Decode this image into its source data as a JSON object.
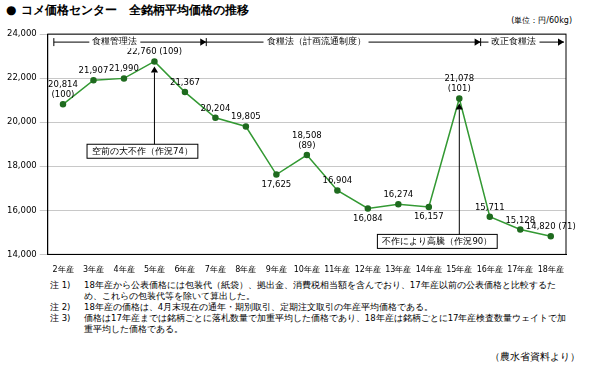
{
  "chart_data": {
    "type": "line",
    "title": "● コメ価格センター　全銘柄平均価格の推移",
    "y_label": "(単位：円/60kg)",
    "categories": [
      "2年産",
      "3年産",
      "4年産",
      "5年産",
      "6年産",
      "7年産",
      "8年産",
      "9年産",
      "10年産",
      "11年産",
      "12年産",
      "13年産",
      "14年産",
      "15年産",
      "16年産",
      "17年産",
      "18年産"
    ],
    "values": [
      20814,
      21907,
      21990,
      22760,
      21367,
      20204,
      19805,
      17625,
      18508,
      16904,
      16084,
      16274,
      16157,
      21078,
      15711,
      15128,
      14820
    ],
    "value_labels": [
      "20,814\n(100)",
      "21,907",
      "21,990",
      "22,760 (109)",
      "21,367",
      "20,204",
      "19,805",
      "17,625",
      "18,508\n(89)",
      "16,904",
      "16,084",
      "16,274",
      "16,157",
      "21,078\n(101)",
      "15,711",
      "15,128",
      "14,820 (71)"
    ],
    "data_labels": true,
    "color": "#339933",
    "marker": "circle",
    "line_style": "solid",
    "ylim": [
      14000,
      24000
    ],
    "yticks": [
      {
        "value": 14000,
        "label": "14,000"
      },
      {
        "value": 16000,
        "label": "16,000"
      },
      {
        "value": 18000,
        "label": "18,000"
      },
      {
        "value": 20000,
        "label": "20,000"
      },
      {
        "value": 22000,
        "label": "22,000"
      },
      {
        "value": 24000,
        "label": "24,000"
      }
    ],
    "grid": true,
    "periods": [
      {
        "label": "食糧管理法",
        "from": "2年産",
        "to": "6年産"
      },
      {
        "label": "食糧法（計画流通制度）",
        "from": "7年産",
        "to": "15年産"
      },
      {
        "label": "改正食糧法",
        "from": "16年産",
        "to": "18年産"
      }
    ],
    "annotations": [
      {
        "text": "空前の大不作（作況74）",
        "category": "5年産"
      },
      {
        "text": "不作により高騰（作況90）",
        "category": "15年産"
      }
    ],
    "notes": [
      {
        "label": "注 1)",
        "text": "18年産から公表価格には包装代（紙袋）、拠出金、消費税相当額を含んでおり、17年産以前の公表価格と比較するため、これらの包装代等を除いて算出した。"
      },
      {
        "label": "注 2)",
        "text": "18年産の価格は、4月末現在の通年・期別取引、定期注文取引の年産平均価格である。"
      },
      {
        "label": "注 3)",
        "text": "価格は17年産までは銘柄ごとに落札数量で加重平均した価格であり、18年産は銘柄ごとに17年産検査数量ウェイトで加重平均した価格である。"
      }
    ],
    "source": "（農水省資料より）"
  }
}
